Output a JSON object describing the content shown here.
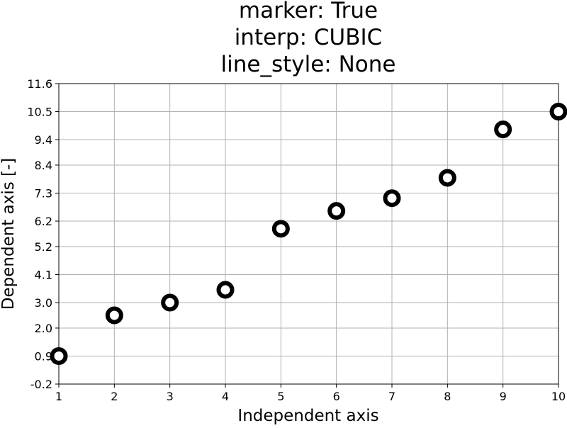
{
  "chart_data": {
    "type": "scatter",
    "title": [
      "marker: True",
      "interp: CUBIC",
      "line_style: None"
    ],
    "xlabel": "Independent axis",
    "ylabel": "Dependent axis [-]",
    "xlim": [
      1,
      10
    ],
    "ylim": [
      -0.2,
      11.6
    ],
    "xticks": [
      "1",
      "2",
      "3",
      "4",
      "5",
      "6",
      "7",
      "8",
      "9",
      "10"
    ],
    "yticks": [
      "-0.2",
      "0.9",
      "2.0",
      "3.0",
      "4.1",
      "5.2",
      "6.2",
      "7.3",
      "8.4",
      "9.4",
      "10.5",
      "11.6"
    ],
    "grid": true,
    "series": [
      {
        "x": [
          1,
          2,
          3,
          4,
          5,
          6,
          7,
          8,
          9,
          10
        ],
        "y": [
          0.9,
          2.5,
          3.0,
          3.5,
          5.9,
          6.6,
          7.1,
          7.9,
          9.8,
          10.5
        ],
        "marker": "ring",
        "color": "#000000"
      }
    ]
  }
}
